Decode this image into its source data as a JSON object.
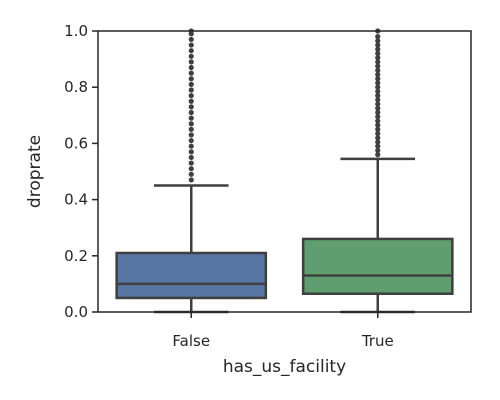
{
  "chart_data": {
    "type": "box",
    "title": "",
    "xlabel": "has_us_facility",
    "ylabel": "droprate",
    "ylim": [
      0,
      1
    ],
    "y_ticks": [
      "0.0",
      "0.2",
      "0.4",
      "0.6",
      "0.8",
      "1.0"
    ],
    "categories": [
      "False",
      "True"
    ],
    "boxes": [
      {
        "category": "False",
        "color": "#5975a4",
        "q1": 0.05,
        "median": 0.1,
        "q3": 0.21,
        "whisker_low": 0.0,
        "whisker_high": 0.45,
        "outliers": [
          0.47,
          0.49,
          0.51,
          0.53,
          0.55,
          0.57,
          0.59,
          0.61,
          0.63,
          0.65,
          0.67,
          0.69,
          0.71,
          0.73,
          0.75,
          0.77,
          0.79,
          0.81,
          0.83,
          0.85,
          0.87,
          0.89,
          0.91,
          0.93,
          0.95,
          0.97,
          0.99,
          1.0
        ]
      },
      {
        "category": "True",
        "color": "#5f9e6e",
        "q1": 0.065,
        "median": 0.13,
        "q3": 0.26,
        "whisker_low": 0.0,
        "whisker_high": 0.545,
        "outliers": [
          0.56,
          0.575,
          0.59,
          0.605,
          0.62,
          0.635,
          0.65,
          0.665,
          0.68,
          0.695,
          0.71,
          0.725,
          0.74,
          0.755,
          0.77,
          0.785,
          0.8,
          0.815,
          0.83,
          0.845,
          0.86,
          0.875,
          0.89,
          0.905,
          0.92,
          0.935,
          0.95,
          0.965,
          0.98,
          1.0
        ]
      }
    ]
  },
  "colors": {
    "axis": "#262626",
    "line": "#3f3f3f"
  }
}
